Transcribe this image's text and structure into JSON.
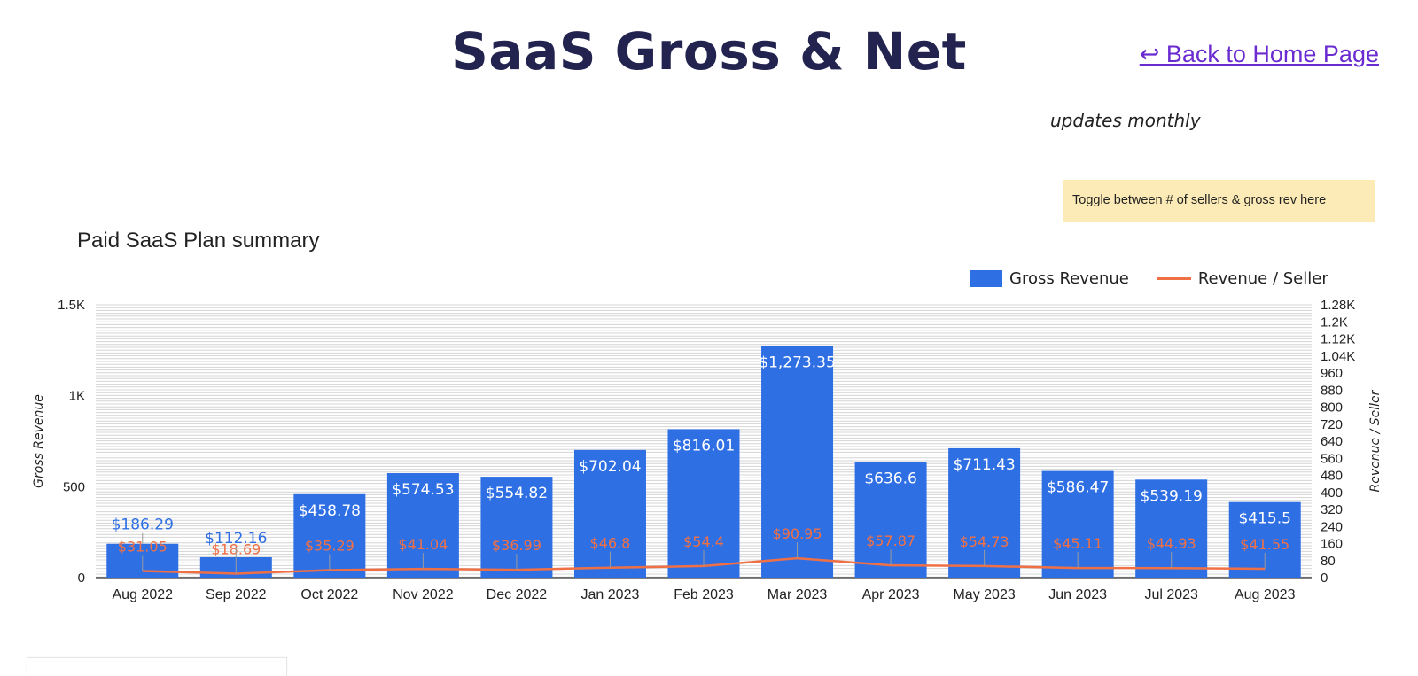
{
  "header": {
    "title": "SaaS Gross & Net",
    "back_link": "↩ Back to Home Page",
    "updates_note": "updates monthly",
    "toggle_note": "Toggle between # of sellers & gross rev here"
  },
  "colors": {
    "title": "#23234f",
    "bar": "#2f6fe4",
    "line": "#f07046",
    "link": "#6a2bd0",
    "note_bg": "#fcebb6"
  },
  "chart_data": {
    "type": "bar",
    "title": "Paid SaaS Plan summary",
    "categories": [
      "Aug 2022",
      "Sep 2022",
      "Oct 2022",
      "Nov 2022",
      "Dec 2022",
      "Jan 2023",
      "Feb 2023",
      "Mar 2023",
      "Apr 2023",
      "May 2023",
      "Jun 2023",
      "Jul 2023",
      "Aug 2023"
    ],
    "series": [
      {
        "name": "Gross Revenue",
        "type": "bar",
        "axis": "left",
        "values": [
          186.29,
          112.16,
          458.78,
          574.53,
          554.82,
          702.04,
          816.01,
          1273.35,
          636.6,
          711.43,
          586.47,
          539.19,
          415.5
        ],
        "labels": [
          "$186.29",
          "$112.16",
          "$458.78",
          "$574.53",
          "$554.82",
          "$702.04",
          "$816.01",
          "$1,273.35",
          "$636.6",
          "$711.43",
          "$586.47",
          "$539.19",
          "$415.5"
        ]
      },
      {
        "name": "Revenue / Seller",
        "type": "line",
        "axis": "right",
        "values": [
          31.05,
          18.69,
          35.29,
          41.04,
          36.99,
          46.8,
          54.4,
          90.95,
          57.87,
          54.73,
          45.11,
          44.93,
          41.55
        ],
        "labels": [
          "$31.05",
          "$18.69",
          "$35.29",
          "$41.04",
          "$36.99",
          "$46.8",
          "$54.4",
          "$90.95",
          "$57.87",
          "$54.73",
          "$45.11",
          "$44.93",
          "$41.55"
        ]
      }
    ],
    "y_left": {
      "label": "Gross Revenue",
      "range": [
        0,
        1500
      ],
      "ticks": [
        0,
        500,
        1000,
        1500
      ],
      "tick_labels": [
        "0",
        "500",
        "1K",
        "1.5K"
      ]
    },
    "y_right": {
      "label": "Revenue / Seller",
      "range": [
        0,
        1280
      ],
      "ticks": [
        0,
        80,
        160,
        240,
        320,
        400,
        480,
        560,
        640,
        720,
        800,
        880,
        960,
        1040,
        1120,
        1200,
        1280
      ],
      "tick_labels": [
        "0",
        "80",
        "160",
        "240",
        "320",
        "400",
        "480",
        "560",
        "640",
        "720",
        "800",
        "880",
        "960",
        "1.04K",
        "1.12K",
        "1.2K",
        "1.28K"
      ]
    },
    "legend_position": "top-right",
    "grid": true
  }
}
